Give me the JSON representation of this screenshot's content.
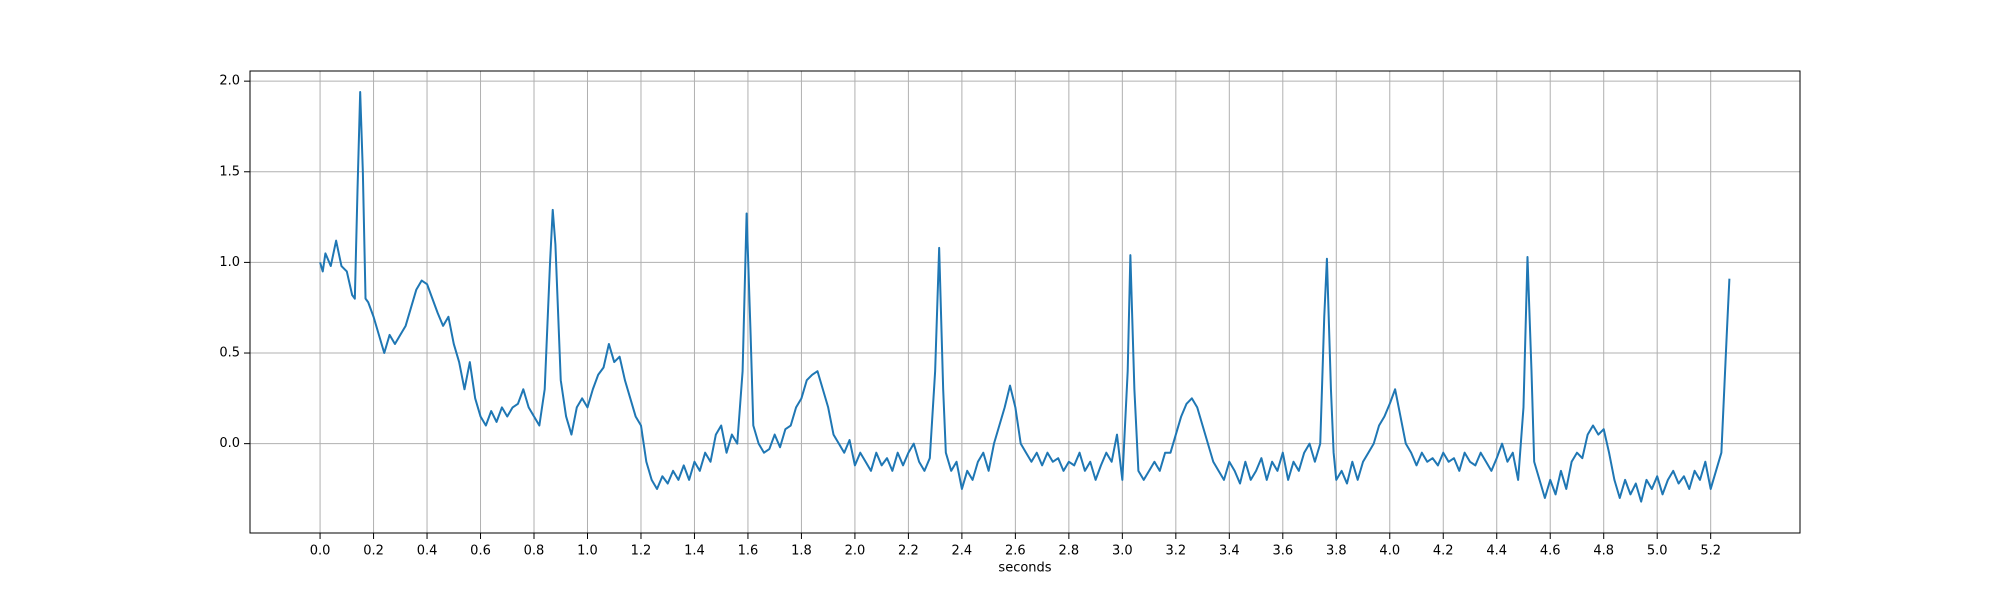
{
  "chart_data": {
    "type": "line",
    "x_label": "seconds",
    "color": "#1f77b4",
    "grid": true,
    "xlim": [
      -0.262,
      5.534
    ],
    "ylim": [
      -0.493,
      2.056
    ],
    "xticks": [
      {
        "value": 0,
        "label": "0.0"
      },
      {
        "value": 0.2,
        "label": "0.2"
      },
      {
        "value": 0.4,
        "label": "0.4"
      },
      {
        "value": 0.6,
        "label": "0.6"
      },
      {
        "value": 0.8,
        "label": "0.8"
      },
      {
        "value": 1,
        "label": "1.0"
      },
      {
        "value": 1.2,
        "label": "1.2"
      },
      {
        "value": 1.4,
        "label": "1.4"
      },
      {
        "value": 1.6,
        "label": "1.6"
      },
      {
        "value": 1.8,
        "label": "1.8"
      },
      {
        "value": 2,
        "label": "2.0"
      },
      {
        "value": 2.2,
        "label": "2.2"
      },
      {
        "value": 2.4,
        "label": "2.4"
      },
      {
        "value": 2.6,
        "label": "2.6"
      },
      {
        "value": 2.8,
        "label": "2.8"
      },
      {
        "value": 3,
        "label": "3.0"
      },
      {
        "value": 3.2,
        "label": "3.2"
      },
      {
        "value": 3.4,
        "label": "3.4"
      },
      {
        "value": 3.6,
        "label": "3.6"
      },
      {
        "value": 3.8,
        "label": "3.8"
      },
      {
        "value": 4,
        "label": "4.0"
      },
      {
        "value": 4.2,
        "label": "4.2"
      },
      {
        "value": 4.4,
        "label": "4.4"
      },
      {
        "value": 4.6,
        "label": "4.6"
      },
      {
        "value": 4.8,
        "label": "4.8"
      },
      {
        "value": 5,
        "label": "5.0"
      },
      {
        "value": 5.2,
        "label": "5.2"
      }
    ],
    "yticks": [
      {
        "value": 0,
        "label": "0.0"
      },
      {
        "value": 0.5,
        "label": "0.5"
      },
      {
        "value": 1,
        "label": "1.0"
      },
      {
        "value": 1.5,
        "label": "1.5"
      },
      {
        "value": 2,
        "label": "2.0"
      }
    ],
    "x": [
      0,
      0.01,
      0.02,
      0.04,
      0.06,
      0.08,
      0.1,
      0.12,
      0.13,
      0.14,
      0.15,
      0.16,
      0.17,
      0.18,
      0.2,
      0.22,
      0.24,
      0.26,
      0.28,
      0.3,
      0.32,
      0.34,
      0.36,
      0.38,
      0.4,
      0.42,
      0.44,
      0.46,
      0.48,
      0.5,
      0.52,
      0.54,
      0.56,
      0.58,
      0.6,
      0.62,
      0.64,
      0.66,
      0.68,
      0.7,
      0.72,
      0.74,
      0.76,
      0.78,
      0.8,
      0.82,
      0.84,
      0.86,
      0.87,
      0.88,
      0.9,
      0.92,
      0.94,
      0.96,
      0.98,
      1.0,
      1.02,
      1.04,
      1.06,
      1.08,
      1.1,
      1.12,
      1.14,
      1.16,
      1.18,
      1.2,
      1.22,
      1.24,
      1.26,
      1.28,
      1.3,
      1.32,
      1.34,
      1.36,
      1.38,
      1.4,
      1.42,
      1.44,
      1.46,
      1.48,
      1.5,
      1.52,
      1.54,
      1.56,
      1.58,
      1.595,
      1.61,
      1.62,
      1.64,
      1.66,
      1.68,
      1.7,
      1.72,
      1.74,
      1.76,
      1.78,
      1.8,
      1.82,
      1.84,
      1.86,
      1.88,
      1.9,
      1.92,
      1.94,
      1.96,
      1.98,
      2.0,
      2.02,
      2.04,
      2.06,
      2.08,
      2.1,
      2.12,
      2.14,
      2.16,
      2.18,
      2.2,
      2.22,
      2.24,
      2.26,
      2.28,
      2.3,
      2.315,
      2.33,
      2.34,
      2.36,
      2.38,
      2.4,
      2.42,
      2.44,
      2.46,
      2.48,
      2.5,
      2.52,
      2.54,
      2.56,
      2.58,
      2.6,
      2.62,
      2.64,
      2.66,
      2.68,
      2.7,
      2.72,
      2.74,
      2.76,
      2.78,
      2.8,
      2.82,
      2.84,
      2.86,
      2.88,
      2.9,
      2.92,
      2.94,
      2.96,
      2.98,
      3.0,
      3.02,
      3.03,
      3.045,
      3.06,
      3.08,
      3.1,
      3.12,
      3.14,
      3.16,
      3.18,
      3.2,
      3.22,
      3.24,
      3.26,
      3.28,
      3.3,
      3.32,
      3.34,
      3.36,
      3.38,
      3.4,
      3.42,
      3.44,
      3.46,
      3.48,
      3.5,
      3.52,
      3.54,
      3.56,
      3.58,
      3.6,
      3.62,
      3.64,
      3.66,
      3.68,
      3.7,
      3.72,
      3.74,
      3.755,
      3.765,
      3.78,
      3.79,
      3.8,
      3.82,
      3.84,
      3.86,
      3.88,
      3.9,
      3.92,
      3.94,
      3.96,
      3.98,
      4.0,
      4.02,
      4.04,
      4.06,
      4.08,
      4.1,
      4.12,
      4.14,
      4.16,
      4.18,
      4.2,
      4.22,
      4.24,
      4.26,
      4.28,
      4.3,
      4.32,
      4.34,
      4.36,
      4.38,
      4.4,
      4.42,
      4.44,
      4.46,
      4.48,
      4.5,
      4.515,
      4.53,
      4.54,
      4.56,
      4.58,
      4.6,
      4.62,
      4.64,
      4.66,
      4.68,
      4.7,
      4.72,
      4.74,
      4.76,
      4.78,
      4.8,
      4.82,
      4.84,
      4.86,
      4.88,
      4.9,
      4.92,
      4.94,
      4.96,
      4.98,
      5.0,
      5.02,
      5.04,
      5.06,
      5.08,
      5.1,
      5.12,
      5.14,
      5.16,
      5.18,
      5.2,
      5.22,
      5.24,
      5.26,
      5.27
    ],
    "values": [
      1.0,
      0.95,
      1.05,
      0.98,
      1.12,
      0.98,
      0.95,
      0.82,
      0.8,
      1.4,
      1.94,
      1.5,
      0.8,
      0.78,
      0.7,
      0.6,
      0.5,
      0.6,
      0.55,
      0.6,
      0.65,
      0.75,
      0.85,
      0.9,
      0.88,
      0.8,
      0.72,
      0.65,
      0.7,
      0.55,
      0.45,
      0.3,
      0.45,
      0.25,
      0.15,
      0.1,
      0.18,
      0.12,
      0.2,
      0.15,
      0.2,
      0.22,
      0.3,
      0.2,
      0.15,
      0.1,
      0.3,
      1.0,
      1.29,
      1.1,
      0.35,
      0.15,
      0.05,
      0.2,
      0.25,
      0.2,
      0.3,
      0.38,
      0.42,
      0.55,
      0.45,
      0.48,
      0.35,
      0.25,
      0.15,
      0.1,
      -0.1,
      -0.2,
      -0.25,
      -0.18,
      -0.22,
      -0.15,
      -0.2,
      -0.12,
      -0.2,
      -0.1,
      -0.15,
      -0.05,
      -0.1,
      0.05,
      0.1,
      -0.05,
      0.05,
      0.0,
      0.4,
      1.27,
      0.6,
      0.1,
      0.0,
      -0.05,
      -0.03,
      0.05,
      -0.02,
      0.08,
      0.1,
      0.2,
      0.25,
      0.35,
      0.38,
      0.4,
      0.3,
      0.2,
      0.05,
      0.0,
      -0.05,
      0.02,
      -0.12,
      -0.05,
      -0.1,
      -0.15,
      -0.05,
      -0.12,
      -0.08,
      -0.15,
      -0.05,
      -0.12,
      -0.05,
      0.0,
      -0.1,
      -0.15,
      -0.08,
      0.4,
      1.08,
      0.3,
      -0.05,
      -0.15,
      -0.1,
      -0.25,
      -0.15,
      -0.2,
      -0.1,
      -0.05,
      -0.15,
      0.0,
      0.1,
      0.2,
      0.32,
      0.2,
      0.0,
      -0.05,
      -0.1,
      -0.05,
      -0.12,
      -0.05,
      -0.1,
      -0.08,
      -0.15,
      -0.1,
      -0.12,
      -0.05,
      -0.15,
      -0.1,
      -0.2,
      -0.12,
      -0.05,
      -0.1,
      0.05,
      -0.2,
      0.4,
      1.04,
      0.3,
      -0.15,
      -0.2,
      -0.15,
      -0.1,
      -0.15,
      -0.05,
      -0.05,
      0.05,
      0.15,
      0.22,
      0.25,
      0.2,
      0.1,
      0.0,
      -0.1,
      -0.15,
      -0.2,
      -0.1,
      -0.15,
      -0.22,
      -0.1,
      -0.2,
      -0.15,
      -0.08,
      -0.2,
      -0.1,
      -0.15,
      -0.05,
      -0.2,
      -0.1,
      -0.15,
      -0.05,
      0.0,
      -0.1,
      0.0,
      0.7,
      1.02,
      0.3,
      -0.05,
      -0.2,
      -0.15,
      -0.22,
      -0.1,
      -0.2,
      -0.1,
      -0.05,
      0.0,
      0.1,
      0.15,
      0.22,
      0.3,
      0.15,
      0.0,
      -0.05,
      -0.12,
      -0.05,
      -0.1,
      -0.08,
      -0.12,
      -0.05,
      -0.1,
      -0.08,
      -0.15,
      -0.05,
      -0.1,
      -0.12,
      -0.05,
      -0.1,
      -0.15,
      -0.08,
      0.0,
      -0.1,
      -0.05,
      -0.2,
      0.2,
      1.03,
      0.4,
      -0.1,
      -0.2,
      -0.3,
      -0.2,
      -0.28,
      -0.15,
      -0.25,
      -0.1,
      -0.05,
      -0.08,
      0.05,
      0.1,
      0.05,
      0.08,
      -0.05,
      -0.2,
      -0.3,
      -0.2,
      -0.28,
      -0.22,
      -0.32,
      -0.2,
      -0.25,
      -0.18,
      -0.28,
      -0.2,
      -0.15,
      -0.22,
      -0.18,
      -0.25,
      -0.15,
      -0.2,
      -0.1,
      -0.25,
      -0.15,
      -0.05,
      0.6,
      0.91
    ]
  }
}
